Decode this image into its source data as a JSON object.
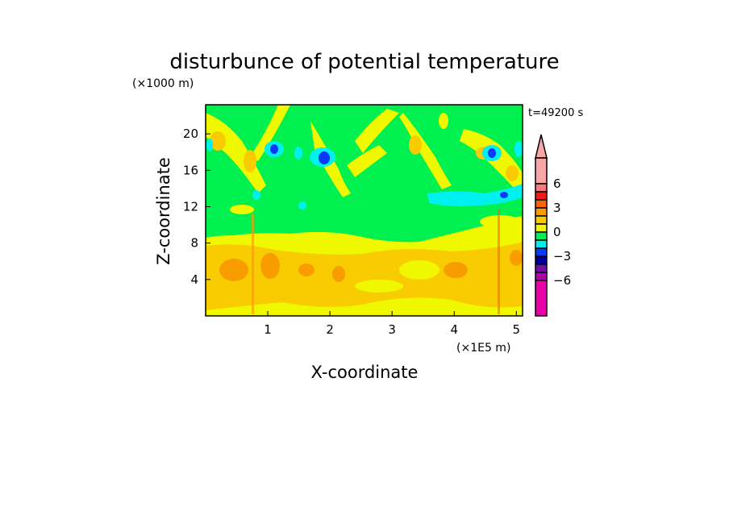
{
  "chart_data": {
    "type": "heatmap",
    "title": "disturbunce of potential temperature",
    "xlabel": "X-coordinate",
    "ylabel": "Z-coordinate",
    "x_unit": "(×1E5 m)",
    "y_unit": "(×1000 m)",
    "time_label": "t=49200 s",
    "xlim": [
      0,
      5.1
    ],
    "ylim": [
      0,
      23.2
    ],
    "x_ticks": [
      1,
      2,
      3,
      4,
      5
    ],
    "y_ticks": [
      4,
      8,
      12,
      16,
      20
    ],
    "colorbar": {
      "labels": [
        "6",
        "3",
        "0",
        "-3",
        "-6"
      ],
      "label_values": [
        6,
        3,
        0,
        -3,
        -6
      ],
      "colors": [
        "#f9a6a6",
        "#f87a7a",
        "#f81818",
        "#f86400",
        "#f89c00",
        "#f8cc00",
        "#f0f800",
        "#00f050",
        "#00f0f0",
        "#0838f8",
        "#0000a0",
        "#7010a8",
        "#b000a8",
        "#e800a8"
      ],
      "extend": "upper"
    },
    "description_levels": {
      "upper_layer_z": [
        9,
        23
      ],
      "upper_layer_dominant": "0 to 1 (green) with -1 to -3 pockets",
      "lower_layer_z": [
        0,
        9
      ],
      "lower_layer_dominant": "1 to 3 (yellow/orange)"
    }
  }
}
